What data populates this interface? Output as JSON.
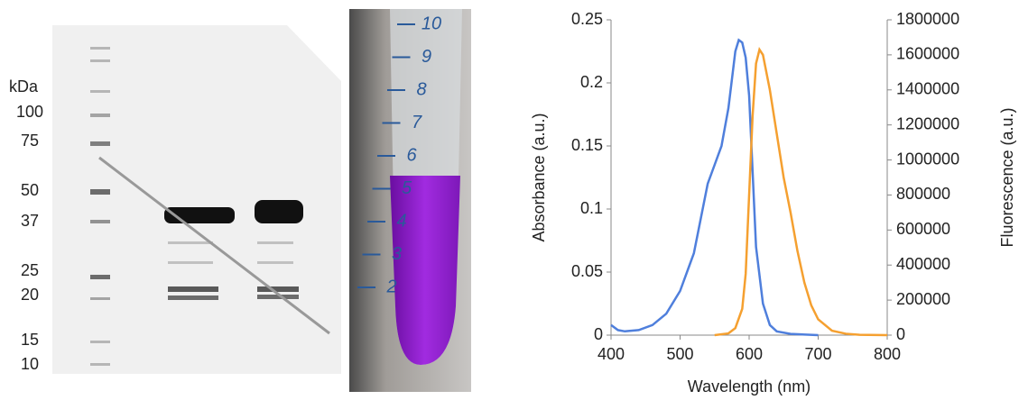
{
  "gel": {
    "unit": "kDa",
    "markers": [
      "100",
      "75",
      "50",
      "37",
      "25",
      "20",
      "15",
      "10"
    ]
  },
  "tube": {
    "graduations": [
      "10",
      "9",
      "8",
      "7",
      "6",
      "5",
      "4",
      "3",
      "2"
    ]
  },
  "chart_data": {
    "type": "line",
    "x_label": "Wavelength (nm)",
    "y_label": "Absorbance (a.u.)",
    "y2_label": "Fluorescence (a.u.)",
    "xlim": [
      400,
      800
    ],
    "xticks": [
      400,
      500,
      600,
      700,
      800
    ],
    "ylim": [
      0,
      0.25
    ],
    "yticks": [
      0,
      0.05,
      0.1,
      0.15,
      0.2,
      0.25
    ],
    "y2lim": [
      0,
      1800000
    ],
    "y2ticks": [
      0,
      200000,
      400000,
      600000,
      800000,
      1000000,
      1200000,
      1400000,
      1600000,
      1800000
    ],
    "series": [
      {
        "color": "#4f7fdc",
        "axis": "y",
        "x": [
          400,
          410,
          420,
          440,
          460,
          480,
          500,
          520,
          540,
          550,
          560,
          570,
          580,
          585,
          590,
          595,
          600,
          605,
          610,
          620,
          630,
          640,
          660,
          700
        ],
        "values": [
          0.008,
          0.004,
          0.003,
          0.004,
          0.008,
          0.017,
          0.035,
          0.065,
          0.12,
          0.135,
          0.15,
          0.18,
          0.225,
          0.234,
          0.232,
          0.22,
          0.19,
          0.13,
          0.07,
          0.025,
          0.008,
          0.003,
          0.001,
          0
        ]
      },
      {
        "color": "#f5a030",
        "axis": "y2",
        "x": [
          550,
          570,
          580,
          590,
          595,
          600,
          605,
          610,
          615,
          620,
          630,
          640,
          650,
          660,
          670,
          680,
          690,
          700,
          720,
          740,
          760,
          800
        ],
        "values": [
          0,
          10000,
          40000,
          150000,
          350000,
          800000,
          1250000,
          1550000,
          1630000,
          1600000,
          1400000,
          1150000,
          900000,
          700000,
          480000,
          300000,
          170000,
          90000,
          25000,
          8000,
          2000,
          0
        ]
      }
    ]
  }
}
